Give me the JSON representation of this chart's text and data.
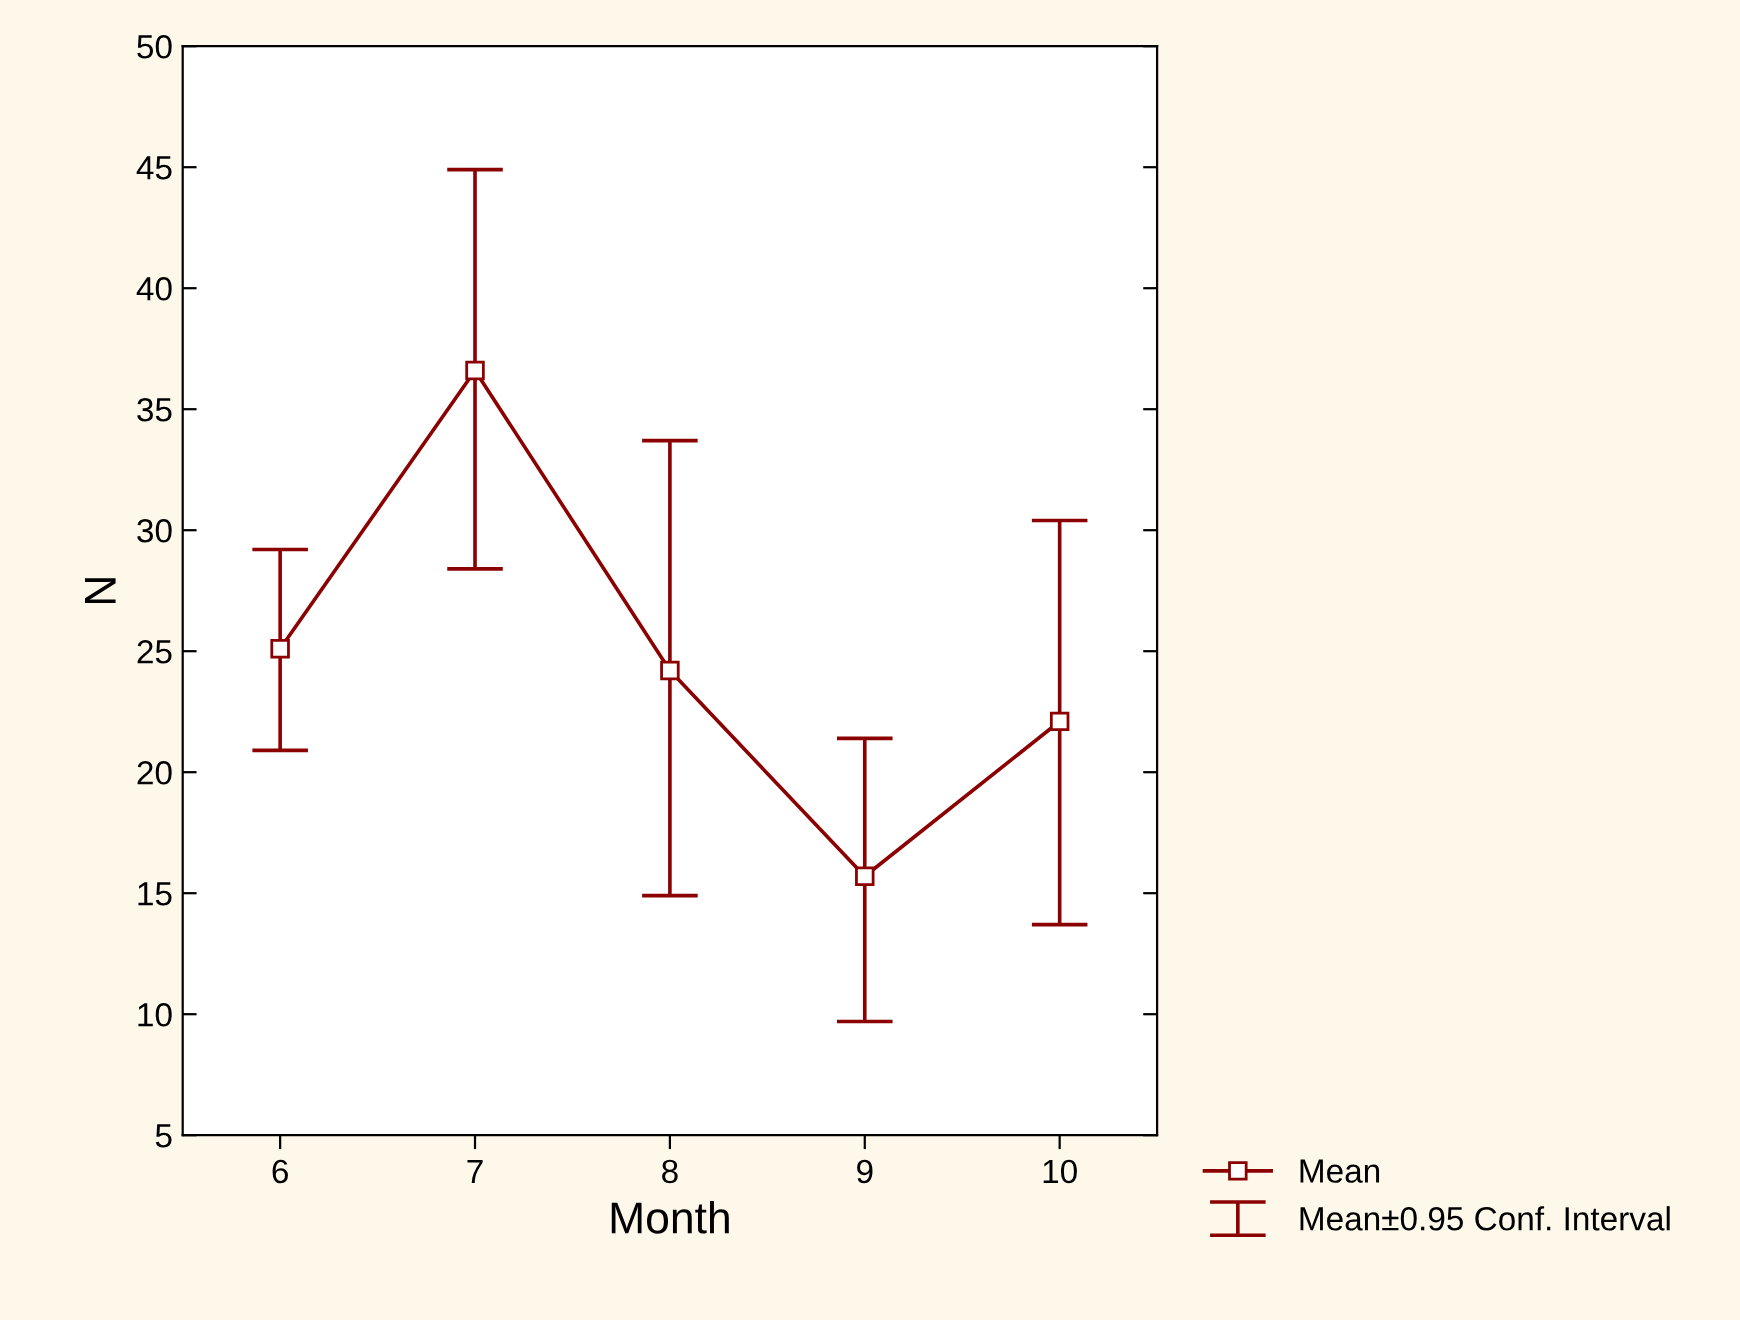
{
  "chart_data": {
    "type": "line",
    "xlabel": "Month",
    "ylabel": "N",
    "categories": [
      "6",
      "7",
      "8",
      "9",
      "10"
    ],
    "series": [
      {
        "name": "Mean",
        "color": "#8b0000",
        "values": [
          25.1,
          36.6,
          24.2,
          15.7,
          22.1
        ],
        "errors": [
          [
            20.9,
            29.2
          ],
          [
            28.4,
            44.9
          ],
          [
            14.9,
            33.7
          ],
          [
            9.7,
            21.4
          ],
          [
            13.7,
            30.4
          ]
        ]
      }
    ],
    "annotations": [
      "Mean±0.95 Conf. Interval"
    ],
    "ylim": [
      5,
      50
    ],
    "yticks": [
      5,
      10,
      15,
      20,
      25,
      30,
      35,
      40,
      45,
      50
    ],
    "marker": "square",
    "line_style": "solid",
    "grid": false,
    "legend": "bottom right"
  }
}
